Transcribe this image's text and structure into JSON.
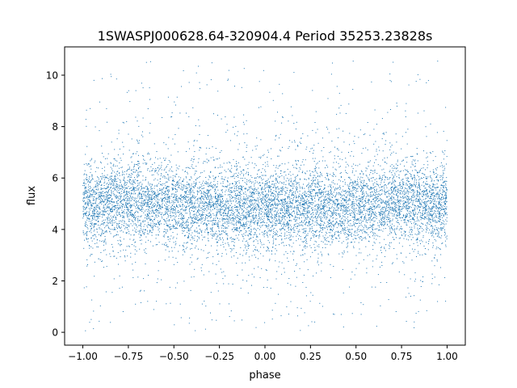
{
  "chart_data": {
    "type": "scatter",
    "title": "1SWASPJ000628.64-320904.4 Period 35253.23828s",
    "xlabel": "phase",
    "ylabel": "flux",
    "xlim": [
      -1.1,
      1.1
    ],
    "ylim": [
      -0.5,
      11.1
    ],
    "xticks": [
      -1.0,
      -0.75,
      -0.5,
      -0.25,
      0.0,
      0.25,
      0.5,
      0.75,
      1.0
    ],
    "xtick_labels": [
      "−1.00",
      "−0.75",
      "−0.50",
      "−0.25",
      "0.00",
      "0.25",
      "0.50",
      "0.75",
      "1.00"
    ],
    "yticks": [
      0,
      2,
      4,
      6,
      8,
      10
    ],
    "ytick_labels": [
      "0",
      "2",
      "4",
      "6",
      "8",
      "10"
    ],
    "grid": false,
    "legend": "none",
    "series": [
      {
        "color": "#1f77b4",
        "x_range": [
          -1.0,
          1.0
        ],
        "flux_center": [
          {
            "x": -1.0,
            "y": 4.9
          },
          {
            "x": -0.75,
            "y": 5.1
          },
          {
            "x": -0.5,
            "y": 4.9
          },
          {
            "x": -0.25,
            "y": 4.85
          },
          {
            "x": 0.0,
            "y": 4.85
          },
          {
            "x": 0.25,
            "y": 4.95
          },
          {
            "x": 0.5,
            "y": 4.9
          },
          {
            "x": 0.75,
            "y": 5.1
          },
          {
            "x": 1.0,
            "y": 4.9
          }
        ],
        "core_spread_sd": 0.75,
        "outlier_range": [
          0.0,
          10.6
        ]
      }
    ]
  }
}
